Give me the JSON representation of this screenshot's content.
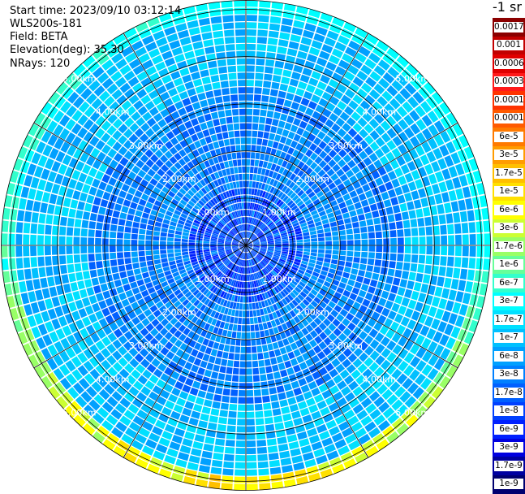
{
  "header": {
    "start_time": "Start time: 2023/09/10 03:12:14",
    "instrument": "WLS200s-181",
    "field": "Field: BETA",
    "elevation": "Elevation(deg): 35.30",
    "nrays": "NRays: 120"
  },
  "colorbar": {
    "unit": "-1 sr",
    "ticks": [
      "0.0017",
      "0.001",
      "0.0006",
      "0.0003",
      "0.00017",
      "0.0001",
      "6e-5",
      "3e-5",
      "1.7e-5",
      "1e-5",
      "6e-6",
      "3e-6",
      "1.7e-6",
      "1e-6",
      "6e-7",
      "3e-7",
      "1.7e-7",
      "1e-7",
      "6e-8",
      "3e-8",
      "1.7e-8",
      "1e-8",
      "6e-9",
      "3e-9",
      "1.7e-9",
      "1e-9"
    ],
    "colors": [
      "#8b0000",
      "#c20000",
      "#e00000",
      "#ff1a1a",
      "#ff3300",
      "#ff5a00",
      "#ff7a00",
      "#ff9c00",
      "#ffbf00",
      "#ffe000",
      "#ffff00",
      "#ccff33",
      "#99ff66",
      "#66ff99",
      "#33ffcc",
      "#00ffff",
      "#00e0ff",
      "#00c0ff",
      "#00a0ff",
      "#0080ff",
      "#0060ff",
      "#0040ff",
      "#0020ff",
      "#0000e0",
      "#0000a0",
      "#000070"
    ],
    "label_dark": [
      true,
      true,
      false,
      false,
      false,
      false,
      false,
      false,
      false,
      false,
      false,
      false,
      false,
      false,
      false,
      false,
      false,
      false,
      true,
      true,
      true,
      true,
      true,
      true,
      true,
      true
    ]
  },
  "chart_data": {
    "type": "heatmap",
    "projection": "polar PPI scan",
    "n_rays": 120,
    "range_rings_km": [
      1.0,
      2.0,
      3.0,
      4.0,
      5.0
    ],
    "ring_labels": [
      "1.00km",
      "2.00km",
      "3.00km",
      "4.00km",
      "5.00km"
    ],
    "max_range_km": 5.2,
    "radial_spokes_deg": [
      0,
      30,
      60,
      90,
      120,
      150,
      180,
      210,
      240,
      270,
      300,
      330
    ],
    "grid": true,
    "value_levels": [
      "1e-9",
      "1.7e-9",
      "3e-9",
      "6e-9",
      "1e-8",
      "1.7e-8",
      "3e-8",
      "6e-8",
      "1e-7",
      "1.7e-7",
      "3e-7",
      "6e-7",
      "1e-6",
      "1.7e-6",
      "3e-6",
      "6e-6",
      "1e-5",
      "1.7e-5",
      "3e-5",
      "6e-5",
      "0.0001",
      "0.00017",
      "0.0003",
      "0.0006",
      "0.001",
      "0.0017"
    ],
    "dominant_level_inner": "1e-8",
    "dominant_level_middle": "3e-8",
    "dominant_level_outer": "1e-7",
    "edge_band_level_south": "1e-5"
  }
}
